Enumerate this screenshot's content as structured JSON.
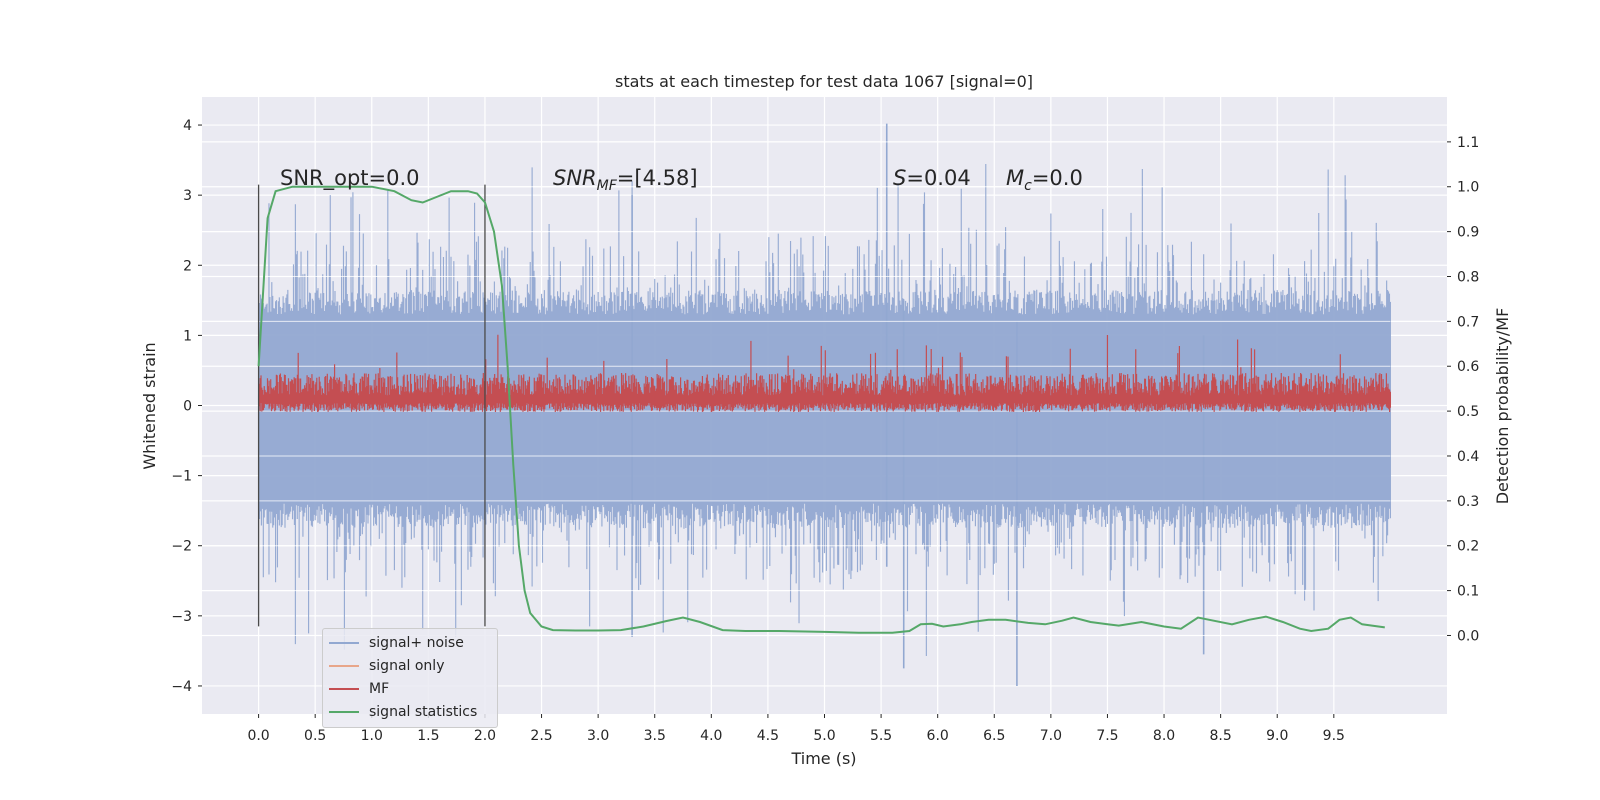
{
  "chart_data": {
    "type": "line",
    "title": "stats at each timestep for test data 1067 [signal=0]",
    "xlabel": "Time (s)",
    "ylabel": "Whitened strain",
    "ylabel_right": "Detection probability/MF",
    "xlim": [
      -0.5,
      10.5
    ],
    "ylim": [
      -4.4,
      4.4
    ],
    "ylim_right": [
      -0.175,
      1.2
    ],
    "x_ticks": [
      "0.0",
      "0.5",
      "1.0",
      "1.5",
      "2.0",
      "2.5",
      "3.0",
      "3.5",
      "4.0",
      "4.5",
      "5.0",
      "5.5",
      "6.0",
      "6.5",
      "7.0",
      "7.5",
      "8.0",
      "8.5",
      "9.0",
      "9.5"
    ],
    "y_ticks": [
      "4",
      "3",
      "2",
      "1",
      "0",
      "−1",
      "−2",
      "−3",
      "−4"
    ],
    "y_ticks_right": [
      "1.1",
      "1.0",
      "0.9",
      "0.8",
      "0.7",
      "0.6",
      "0.5",
      "0.4",
      "0.3",
      "0.2",
      "0.1",
      "0.0"
    ],
    "annotations": {
      "snr_opt": "SNR_opt=0.0",
      "snr_mf_sym": "SNR",
      "snr_mf_sub": "MF",
      "snr_mf_val": "=[4.58]",
      "s_sym": "S",
      "s_val": "=0.04",
      "mc_sym": "M",
      "mc_sub": "c",
      "mc_val": "=0.0"
    },
    "vlines": [
      0.0,
      2.0
    ],
    "grid": true,
    "legend_position": "lower-left",
    "series": [
      {
        "name": "signal+ noise",
        "color": "#92a8d1",
        "envelope": {
          "upper_typical": 1.3,
          "upper_spikes_max": 4.0,
          "lower_typical": -1.4,
          "lower_spikes_min": -4.0,
          "x_range": [
            0.0,
            10.0
          ]
        }
      },
      {
        "name": "signal only",
        "color": "#e8a68a",
        "values": []
      },
      {
        "name": "MF",
        "color": "#c44e52",
        "envelope_right_axis": {
          "lower": 0.5,
          "upper_typical": 0.57,
          "upper_spikes_max": 0.66,
          "x_range": [
            0.0,
            10.0
          ]
        }
      },
      {
        "name": "signal statistics",
        "color": "#55a868",
        "axis": "right",
        "x": [
          0.0,
          0.08,
          0.15,
          0.3,
          0.5,
          1.0,
          1.2,
          1.35,
          1.45,
          1.55,
          1.7,
          1.85,
          1.93,
          2.0,
          2.08,
          2.15,
          2.2,
          2.25,
          2.3,
          2.35,
          2.4,
          2.5,
          2.6,
          2.8,
          3.0,
          3.2,
          3.4,
          3.6,
          3.75,
          3.9,
          4.1,
          4.3,
          4.6,
          5.0,
          5.3,
          5.6,
          5.75,
          5.85,
          5.95,
          6.05,
          6.2,
          6.3,
          6.45,
          6.6,
          6.8,
          6.95,
          7.1,
          7.2,
          7.35,
          7.5,
          7.6,
          7.8,
          8.0,
          8.15,
          8.3,
          8.4,
          8.6,
          8.75,
          8.9,
          9.05,
          9.2,
          9.3,
          9.45,
          9.55,
          9.65,
          9.75,
          9.95
        ],
        "values": [
          0.6,
          0.93,
          0.99,
          1.0,
          1.0,
          1.0,
          0.99,
          0.97,
          0.965,
          0.975,
          0.99,
          0.99,
          0.985,
          0.965,
          0.9,
          0.78,
          0.6,
          0.38,
          0.2,
          0.1,
          0.05,
          0.02,
          0.012,
          0.011,
          0.011,
          0.012,
          0.02,
          0.032,
          0.04,
          0.03,
          0.012,
          0.01,
          0.01,
          0.008,
          0.006,
          0.006,
          0.01,
          0.025,
          0.026,
          0.02,
          0.025,
          0.03,
          0.035,
          0.035,
          0.028,
          0.025,
          0.033,
          0.04,
          0.03,
          0.025,
          0.022,
          0.03,
          0.02,
          0.015,
          0.04,
          0.035,
          0.025,
          0.035,
          0.042,
          0.03,
          0.015,
          0.01,
          0.015,
          0.035,
          0.04,
          0.025,
          0.018
        ]
      }
    ]
  }
}
